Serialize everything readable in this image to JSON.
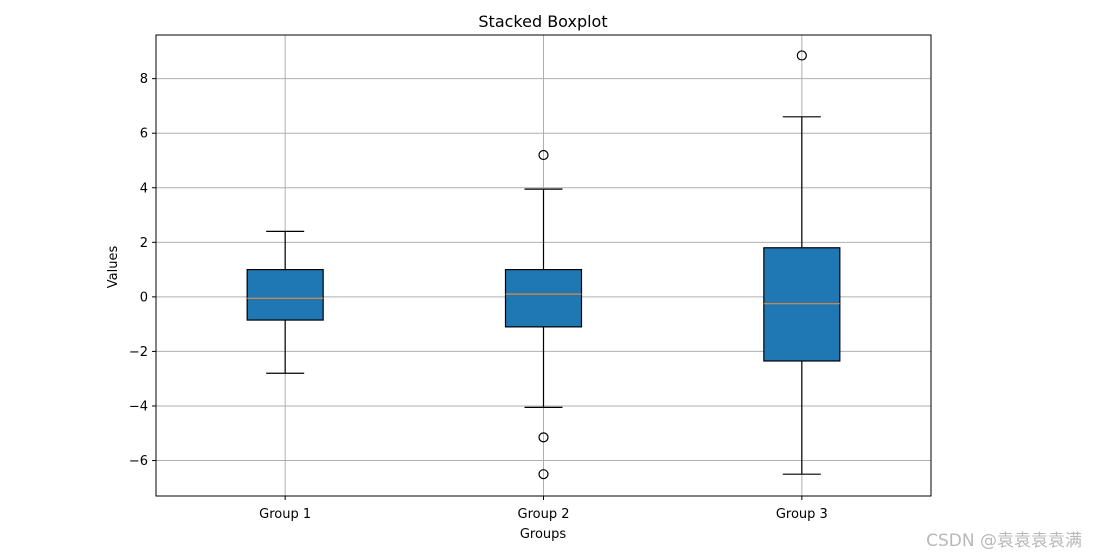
{
  "chart_data": {
    "type": "boxplot",
    "title": "Stacked Boxplot",
    "xlabel": "Groups",
    "ylabel": "Values",
    "ylim": [
      -7.3,
      9.6
    ],
    "yticks": [
      -6,
      -4,
      -2,
      0,
      2,
      4,
      6,
      8
    ],
    "ytick_labels": [
      "−6",
      "−4",
      "−2",
      "0",
      "2",
      "4",
      "6",
      "8"
    ],
    "grid": true,
    "box_color": "#1f77b4",
    "median_color": "#e08a3a",
    "categories": [
      "Group 1",
      "Group 2",
      "Group 3"
    ],
    "boxes": [
      {
        "name": "Group 1",
        "whislo": -2.8,
        "q1": -0.85,
        "med": -0.05,
        "q3": 1.0,
        "whishi": 2.4,
        "fliers": []
      },
      {
        "name": "Group 2",
        "whislo": -4.05,
        "q1": -1.1,
        "med": 0.1,
        "q3": 1.0,
        "whishi": 3.95,
        "fliers": [
          5.2,
          -5.15,
          -6.5
        ]
      },
      {
        "name": "Group 3",
        "whislo": -6.5,
        "q1": -2.35,
        "med": -0.25,
        "q3": 1.8,
        "whishi": 6.6,
        "fliers": [
          8.85
        ]
      }
    ]
  },
  "watermark": "CSDN @袁袁袁袁满"
}
